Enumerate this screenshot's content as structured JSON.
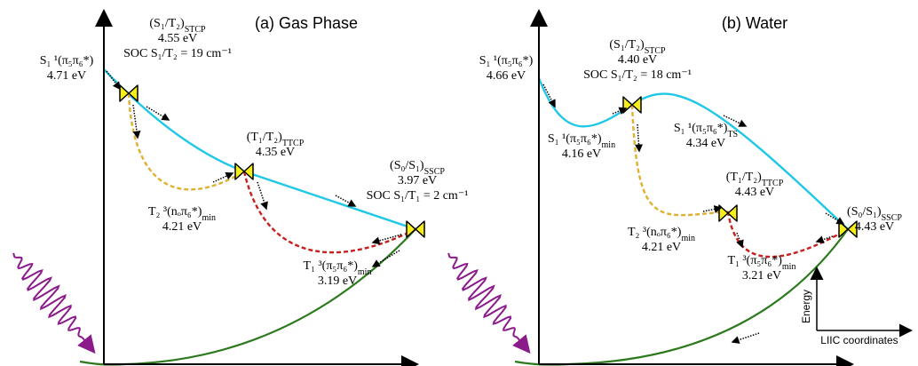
{
  "panels": [
    {
      "title": "(a) Gas Phase",
      "labels": [
        {
          "name": "S₁ ¹(π₅π₆*)",
          "energy": "4.71 eV"
        },
        {
          "name": "(S₁/T₂)",
          "sub": "STCP",
          "energy": "4.55 eV",
          "soc": "SOC S₁/T₂ = 19 cm⁻¹"
        },
        {
          "name": "(T₁/T₂)",
          "sub": "TTCP",
          "energy": "4.35 eV"
        },
        {
          "name": "(S₀/S₁)",
          "sub": "SSCP",
          "energy": "3.97 eV",
          "soc": "SOC S₁/T₁ = 2 cm⁻¹"
        },
        {
          "name": "T₂ ³(nₒπ₆*)",
          "sub": "min",
          "energy": "4.21 eV"
        },
        {
          "name": "T₁ ³(π₅π₆*)",
          "sub": "min",
          "energy": "3.19 eV"
        }
      ]
    },
    {
      "title": "(b) Water",
      "labels": [
        {
          "name": "S₁ ¹(π₅π₆*)",
          "energy": "4.66 eV"
        },
        {
          "name": "(S₁/T₂)",
          "sub": "STCP",
          "energy": "4.40 eV",
          "soc": "SOC S₁/T₂ = 18 cm⁻¹"
        },
        {
          "name": "S₁ ¹(π₅π₆*)",
          "sub": "min",
          "energy": "4.16 eV"
        },
        {
          "name": "S₁ ¹(π₅π₆*)",
          "sub": "TS",
          "energy": "4.34 eV"
        },
        {
          "name": "(T₁/T₂)",
          "sub": "TTCP",
          "energy": "4.43 eV"
        },
        {
          "name": "(S₀/S₁)",
          "sub": "SSCP",
          "energy": "4.43 eV"
        },
        {
          "name": "T₂ ³(nₒπ₆*)",
          "sub": "min",
          "energy": "4.21 eV"
        },
        {
          "name": "T₁ ³(π₅π₆*)",
          "sub": "min",
          "energy": "3.21 eV"
        }
      ]
    }
  ],
  "axis_legend": {
    "y": "Energy",
    "x": "LIIC coordinates"
  }
}
